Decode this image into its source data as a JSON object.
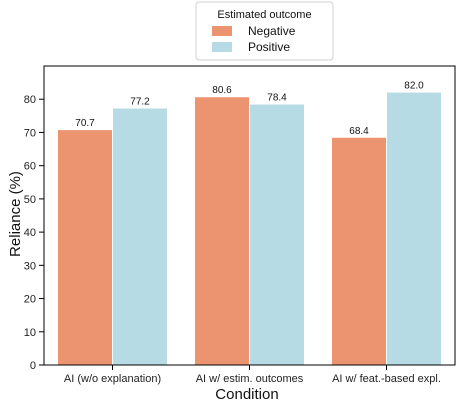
{
  "chart_data": {
    "type": "bar",
    "categories": [
      "AI (w/o explanation)",
      "AI w/ estim. outcomes",
      "AI w/ feat.-based expl."
    ],
    "series": [
      {
        "name": "Negative",
        "values": [
          70.7,
          80.6,
          68.4
        ],
        "color": "#ec9370"
      },
      {
        "name": "Positive",
        "values": [
          77.2,
          78.4,
          82.0
        ],
        "color": "#b6dbe4"
      }
    ],
    "xlabel": "Condition",
    "ylabel": "Reliance (%)",
    "ylim": [
      0,
      90
    ],
    "yticks": [
      0,
      10,
      20,
      30,
      40,
      50,
      60,
      70,
      80
    ],
    "legend_title": "Estimated outcome",
    "legend_position": "top-center",
    "grid": false
  }
}
